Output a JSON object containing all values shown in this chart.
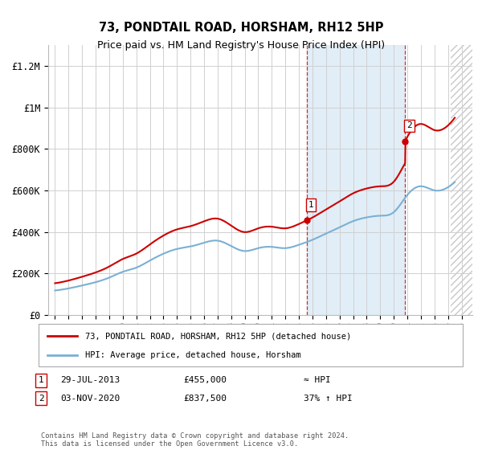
{
  "title": "73, PONDTAIL ROAD, HORSHAM, RH12 5HP",
  "subtitle": "Price paid vs. HM Land Registry's House Price Index (HPI)",
  "vline1_x": 2013.57,
  "vline2_x": 2020.84,
  "sale1_x": 2013.57,
  "sale1_y": 455000,
  "sale2_x": 2020.84,
  "sale2_y": 837500,
  "ylim": [
    0,
    1300000
  ],
  "xlim_start": 1994.5,
  "xlim_end": 2025.8,
  "yticks": [
    0,
    200000,
    400000,
    600000,
    800000,
    1000000,
    1200000
  ],
  "ytick_labels": [
    "£0",
    "£200K",
    "£400K",
    "£600K",
    "£800K",
    "£1M",
    "£1.2M"
  ],
  "xticks": [
    1995,
    1996,
    1997,
    1998,
    1999,
    2000,
    2001,
    2002,
    2003,
    2004,
    2005,
    2006,
    2007,
    2008,
    2009,
    2010,
    2011,
    2012,
    2013,
    2014,
    2015,
    2016,
    2017,
    2018,
    2019,
    2020,
    2021,
    2022,
    2023,
    2024,
    2025
  ],
  "hpi_color": "#7ab0d4",
  "hpi_linewidth": 1.5,
  "price_color": "#cc0000",
  "price_linewidth": 1.5,
  "shade_color": "#daeaf5",
  "shade_alpha": 0.8,
  "hatch_region_start": 2024.17,
  "hatch_region_end": 2025.8,
  "grid_color": "#d0d0d0",
  "legend_label1": "73, PONDTAIL ROAD, HORSHAM, RH12 5HP (detached house)",
  "legend_label2": "HPI: Average price, detached house, Horsham",
  "note1_date": "29-JUL-2013",
  "note1_price": "£455,000",
  "note1_hpi": "≈ HPI",
  "note2_date": "03-NOV-2020",
  "note2_price": "£837,500",
  "note2_hpi": "37% ↑ HPI",
  "footer": "Contains HM Land Registry data © Crown copyright and database right 2024.\nThis data is licensed under the Open Government Licence v3.0.",
  "hpi_years": [
    1995,
    1996,
    1997,
    1998,
    1999,
    2000,
    2001,
    2002,
    2003,
    2004,
    2005,
    2006,
    2007,
    2008,
    2009,
    2010,
    2011,
    2012,
    2013,
    2014,
    2015,
    2016,
    2017,
    2018,
    2019,
    2020,
    2021,
    2022,
    2023,
    2024,
    2024.5
  ],
  "hpi_values": [
    118000,
    128000,
    142000,
    158000,
    180000,
    208000,
    228000,
    262000,
    295000,
    318000,
    330000,
    348000,
    358000,
    332000,
    308000,
    322000,
    328000,
    322000,
    338000,
    362000,
    392000,
    422000,
    452000,
    470000,
    478000,
    495000,
    578000,
    620000,
    600000,
    615000,
    640000
  ]
}
